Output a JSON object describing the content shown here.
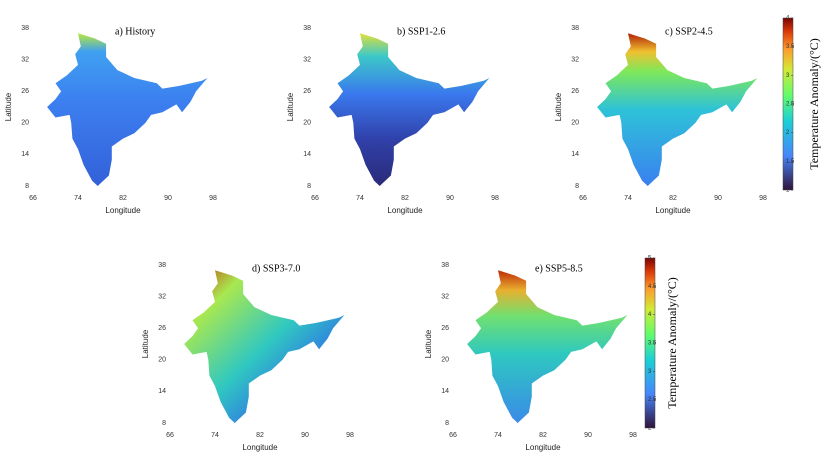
{
  "panels": [
    {
      "title": "a) History",
      "xlabel": "Longitude",
      "ylabel": "Latitude",
      "xticks": [
        66,
        74,
        82,
        90,
        98
      ],
      "yticks": [
        8,
        14,
        20,
        26,
        32,
        38
      ]
    },
    {
      "title": "b) SSP1-2.6",
      "xlabel": "Longitude",
      "ylabel": "Latitude",
      "xticks": [
        66,
        74,
        82,
        90,
        98
      ],
      "yticks": [
        8,
        14,
        20,
        26,
        32,
        38
      ]
    },
    {
      "title": "c) SSP2-4.5",
      "xlabel": "Longitude",
      "ylabel": "Latitude",
      "xticks": [
        66,
        74,
        82,
        90,
        98
      ],
      "yticks": [
        8,
        14,
        20,
        26,
        32,
        38
      ]
    },
    {
      "title": "d) SSP3-7.0",
      "xlabel": "Longitude",
      "ylabel": "Latitude",
      "xticks": [
        66,
        74,
        82,
        90,
        98
      ],
      "yticks": [
        8,
        14,
        20,
        26,
        32,
        38
      ]
    },
    {
      "title": "e) SSP5-8.5",
      "xlabel": "Longitude",
      "ylabel": "Latitude",
      "xticks": [
        66,
        74,
        82,
        90,
        98
      ],
      "yticks": [
        8,
        14,
        20,
        26,
        32,
        38
      ]
    }
  ],
  "colorbars": [
    {
      "label": "Temperature Anomaly/(°C)",
      "ticks": [
        1,
        1.5,
        2,
        2.5,
        3,
        3.5,
        4
      ]
    },
    {
      "label": "Temperature Anomaly/(°C)",
      "ticks": [
        2,
        2.5,
        3,
        3.5,
        4,
        4.5,
        5
      ]
    }
  ]
}
